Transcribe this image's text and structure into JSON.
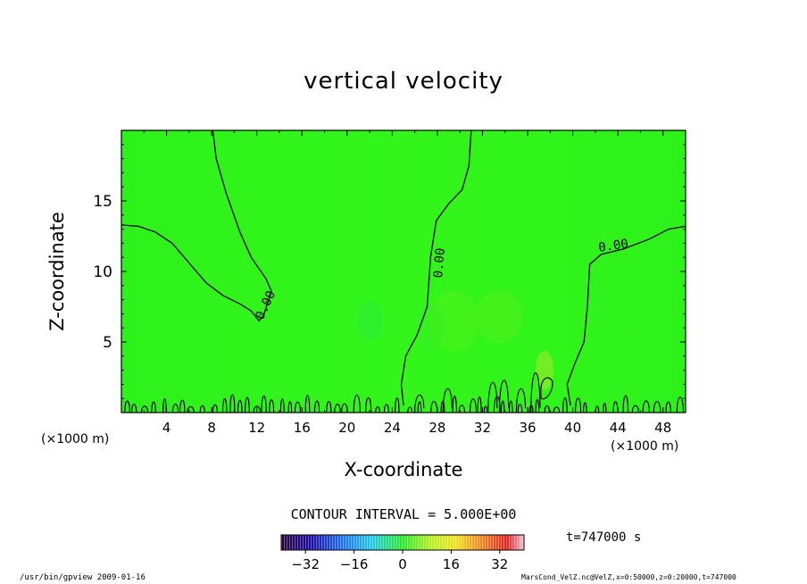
{
  "chart_data": {
    "type": "contour",
    "title": "vertical velocity",
    "xlabel": "X-coordinate",
    "ylabel": "Z-coordinate",
    "x_unit": "(×1000 m)",
    "xlim": [
      0,
      50
    ],
    "ylim": [
      0,
      20
    ],
    "x_ticks": [
      "4",
      "8",
      "12",
      "16",
      "20",
      "24",
      "28",
      "32",
      "36",
      "40",
      "44",
      "48"
    ],
    "y_ticks": [
      "5",
      "10",
      "15"
    ],
    "contour_labels": [
      "0.00",
      "0.00",
      "0.00"
    ],
    "contour_interval_text": "CONTOUR INTERVAL = 5.000E+00",
    "colorbar": {
      "min": -40,
      "max": 40,
      "ticks": [
        "-32",
        "-16",
        "0",
        "16",
        "32"
      ]
    },
    "time_text": "t=747000 s",
    "zero_contours": [
      {
        "points": [
          [
            0,
            13.3
          ],
          [
            1.5,
            13.2
          ],
          [
            3,
            12.8
          ],
          [
            4.5,
            12.0
          ],
          [
            6,
            10.6
          ],
          [
            7.5,
            9.2
          ],
          [
            9,
            8.3
          ],
          [
            10.5,
            7.7
          ],
          [
            11.5,
            7.2
          ],
          [
            12.2,
            6.5
          ],
          [
            12.6,
            6.9
          ],
          [
            13.3,
            8.6
          ],
          [
            12.8,
            9.5
          ],
          [
            11.5,
            11.0
          ],
          [
            10.5,
            12.8
          ],
          [
            9.3,
            15.5
          ],
          [
            8.4,
            18.0
          ],
          [
            8.1,
            20.0
          ]
        ]
      },
      {
        "points": [
          [
            31.0,
            20.0
          ],
          [
            30.8,
            17.5
          ],
          [
            30.2,
            15.8
          ],
          [
            29.0,
            14.8
          ],
          [
            27.9,
            13.6
          ],
          [
            27.4,
            11.0
          ],
          [
            27.1,
            7.5
          ],
          [
            26.2,
            5.5
          ],
          [
            25.2,
            4.0
          ],
          [
            24.8,
            2.0
          ],
          [
            25.0,
            0.5
          ]
        ]
      },
      {
        "points": [
          [
            50,
            13.2
          ],
          [
            48.5,
            13.0
          ],
          [
            46.8,
            12.3
          ],
          [
            44.5,
            11.6
          ],
          [
            42.5,
            11.2
          ],
          [
            41.5,
            10.5
          ],
          [
            41.3,
            7.5
          ],
          [
            41.0,
            5.0
          ],
          [
            40.2,
            3.5
          ],
          [
            39.5,
            2.0
          ],
          [
            39.8,
            0.5
          ]
        ]
      }
    ]
  },
  "footer": {
    "left": "/usr/bin/gpview  2009-01-16",
    "right": "MarsCond_VelZ.nc@VelZ,x=0:50000,z=0:20000,t=747000"
  }
}
